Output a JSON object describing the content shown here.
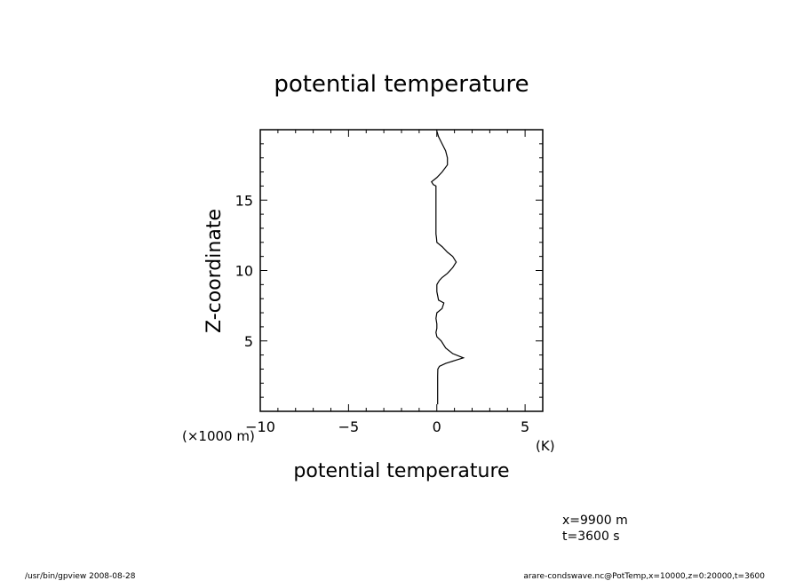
{
  "chart_data": {
    "type": "line",
    "title": "potential temperature",
    "xlabel": "potential temperature",
    "x_unit": "(K)",
    "ylabel": "Z-coordinate",
    "y_unit": "(×1000 m)",
    "xlim": [
      -10,
      6
    ],
    "ylim": [
      0,
      20
    ],
    "x_ticks": [
      "−10",
      "−5",
      "0",
      "5"
    ],
    "y_ticks": [
      "5",
      "10",
      "15"
    ],
    "grid": false,
    "series": [
      {
        "x": [
          0.05,
          0.05,
          0.05,
          0.06,
          0.15,
          0.5,
          1.0,
          1.5,
          0.9,
          0.5,
          0.25,
          0.0,
          -0.05,
          0.0,
          0.0,
          0.0,
          -0.05,
          0.0,
          0.3,
          0.4,
          0.1,
          0.0,
          0.0,
          0.05,
          0.15,
          0.3,
          0.6,
          0.9,
          1.1,
          0.9,
          0.6,
          0.3,
          0.0,
          -0.02,
          -0.05,
          -0.05,
          -0.05,
          -0.05,
          -0.05,
          -0.05,
          -0.2,
          -0.3,
          0.0,
          0.3,
          0.6,
          0.6,
          0.5,
          0.3,
          0.1,
          0.0
        ],
        "y": [
          0.5,
          1.5,
          2.5,
          3.0,
          3.2,
          3.4,
          3.6,
          3.8,
          4.1,
          4.5,
          5.0,
          5.3,
          5.6,
          5.9,
          6.0,
          6.2,
          6.6,
          7.0,
          7.3,
          7.7,
          7.9,
          8.5,
          9.0,
          9.1,
          9.3,
          9.5,
          9.8,
          10.2,
          10.6,
          11.0,
          11.3,
          11.7,
          12.0,
          12.3,
          12.6,
          13.5,
          14.5,
          15.2,
          15.8,
          16.0,
          16.1,
          16.3,
          16.6,
          17.0,
          17.5,
          18.0,
          18.5,
          19.0,
          19.5,
          19.9
        ]
      }
    ]
  },
  "info": {
    "x_line": "x=9900  m",
    "t_line": "t=3600  s"
  },
  "footer": {
    "left": "/usr/bin/gpview   2008-08-28",
    "right": "arare-condswave.nc@PotTemp,x=10000,z=0:20000,t=3600"
  }
}
